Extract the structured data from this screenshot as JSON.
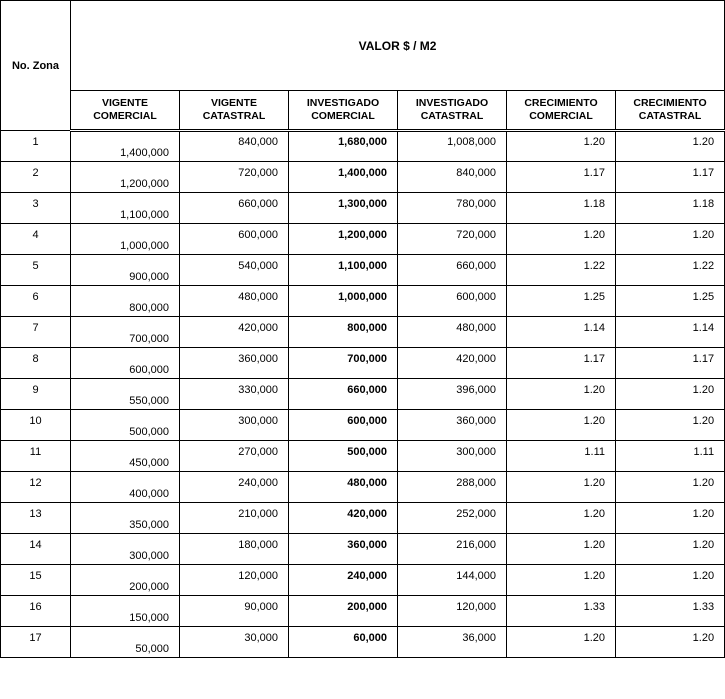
{
  "header": {
    "zona_label": "No. Zona",
    "top_title": "VALOR $ / M2",
    "columns": [
      "VIGENTE COMERCIAL",
      "VIGENTE CATASTRAL",
      "INVESTIGADO COMERCIAL",
      "INVESTIGADO CATASTRAL",
      "CRECIMIENTO COMERCIAL",
      "CRECIMIENTO CATASTRAL"
    ]
  },
  "rows": [
    {
      "zona": "1",
      "vig_com": "1,400,000",
      "vig_cat": "840,000",
      "inv_com": "1,680,000",
      "inv_cat": "1,008,000",
      "crec_com": "1.20",
      "crec_cat": "1.20"
    },
    {
      "zona": "2",
      "vig_com": "1,200,000",
      "vig_cat": "720,000",
      "inv_com": "1,400,000",
      "inv_cat": "840,000",
      "crec_com": "1.17",
      "crec_cat": "1.17"
    },
    {
      "zona": "3",
      "vig_com": "1,100,000",
      "vig_cat": "660,000",
      "inv_com": "1,300,000",
      "inv_cat": "780,000",
      "crec_com": "1.18",
      "crec_cat": "1.18"
    },
    {
      "zona": "4",
      "vig_com": "1,000,000",
      "vig_cat": "600,000",
      "inv_com": "1,200,000",
      "inv_cat": "720,000",
      "crec_com": "1.20",
      "crec_cat": "1.20"
    },
    {
      "zona": "5",
      "vig_com": "900,000",
      "vig_cat": "540,000",
      "inv_com": "1,100,000",
      "inv_cat": "660,000",
      "crec_com": "1.22",
      "crec_cat": "1.22"
    },
    {
      "zona": "6",
      "vig_com": "800,000",
      "vig_cat": "480,000",
      "inv_com": "1,000,000",
      "inv_cat": "600,000",
      "crec_com": "1.25",
      "crec_cat": "1.25"
    },
    {
      "zona": "7",
      "vig_com": "700,000",
      "vig_cat": "420,000",
      "inv_com": "800,000",
      "inv_cat": "480,000",
      "crec_com": "1.14",
      "crec_cat": "1.14"
    },
    {
      "zona": "8",
      "vig_com": "600,000",
      "vig_cat": "360,000",
      "inv_com": "700,000",
      "inv_cat": "420,000",
      "crec_com": "1.17",
      "crec_cat": "1.17"
    },
    {
      "zona": "9",
      "vig_com": "550,000",
      "vig_cat": "330,000",
      "inv_com": "660,000",
      "inv_cat": "396,000",
      "crec_com": "1.20",
      "crec_cat": "1.20"
    },
    {
      "zona": "10",
      "vig_com": "500,000",
      "vig_cat": "300,000",
      "inv_com": "600,000",
      "inv_cat": "360,000",
      "crec_com": "1.20",
      "crec_cat": "1.20"
    },
    {
      "zona": "11",
      "vig_com": "450,000",
      "vig_cat": "270,000",
      "inv_com": "500,000",
      "inv_cat": "300,000",
      "crec_com": "1.11",
      "crec_cat": "1.11"
    },
    {
      "zona": "12",
      "vig_com": "400,000",
      "vig_cat": "240,000",
      "inv_com": "480,000",
      "inv_cat": "288,000",
      "crec_com": "1.20",
      "crec_cat": "1.20"
    },
    {
      "zona": "13",
      "vig_com": "350,000",
      "vig_cat": "210,000",
      "inv_com": "420,000",
      "inv_cat": "252,000",
      "crec_com": "1.20",
      "crec_cat": "1.20"
    },
    {
      "zona": "14",
      "vig_com": "300,000",
      "vig_cat": "180,000",
      "inv_com": "360,000",
      "inv_cat": "216,000",
      "crec_com": "1.20",
      "crec_cat": "1.20"
    },
    {
      "zona": "15",
      "vig_com": "200,000",
      "vig_cat": "120,000",
      "inv_com": "240,000",
      "inv_cat": "144,000",
      "crec_com": "1.20",
      "crec_cat": "1.20"
    },
    {
      "zona": "16",
      "vig_com": "150,000",
      "vig_cat": "90,000",
      "inv_com": "200,000",
      "inv_cat": "120,000",
      "crec_com": "1.33",
      "crec_cat": "1.33"
    },
    {
      "zona": "17",
      "vig_com": "50,000",
      "vig_cat": "30,000",
      "inv_com": "60,000",
      "inv_cat": "36,000",
      "crec_com": "1.20",
      "crec_cat": "1.20"
    }
  ]
}
